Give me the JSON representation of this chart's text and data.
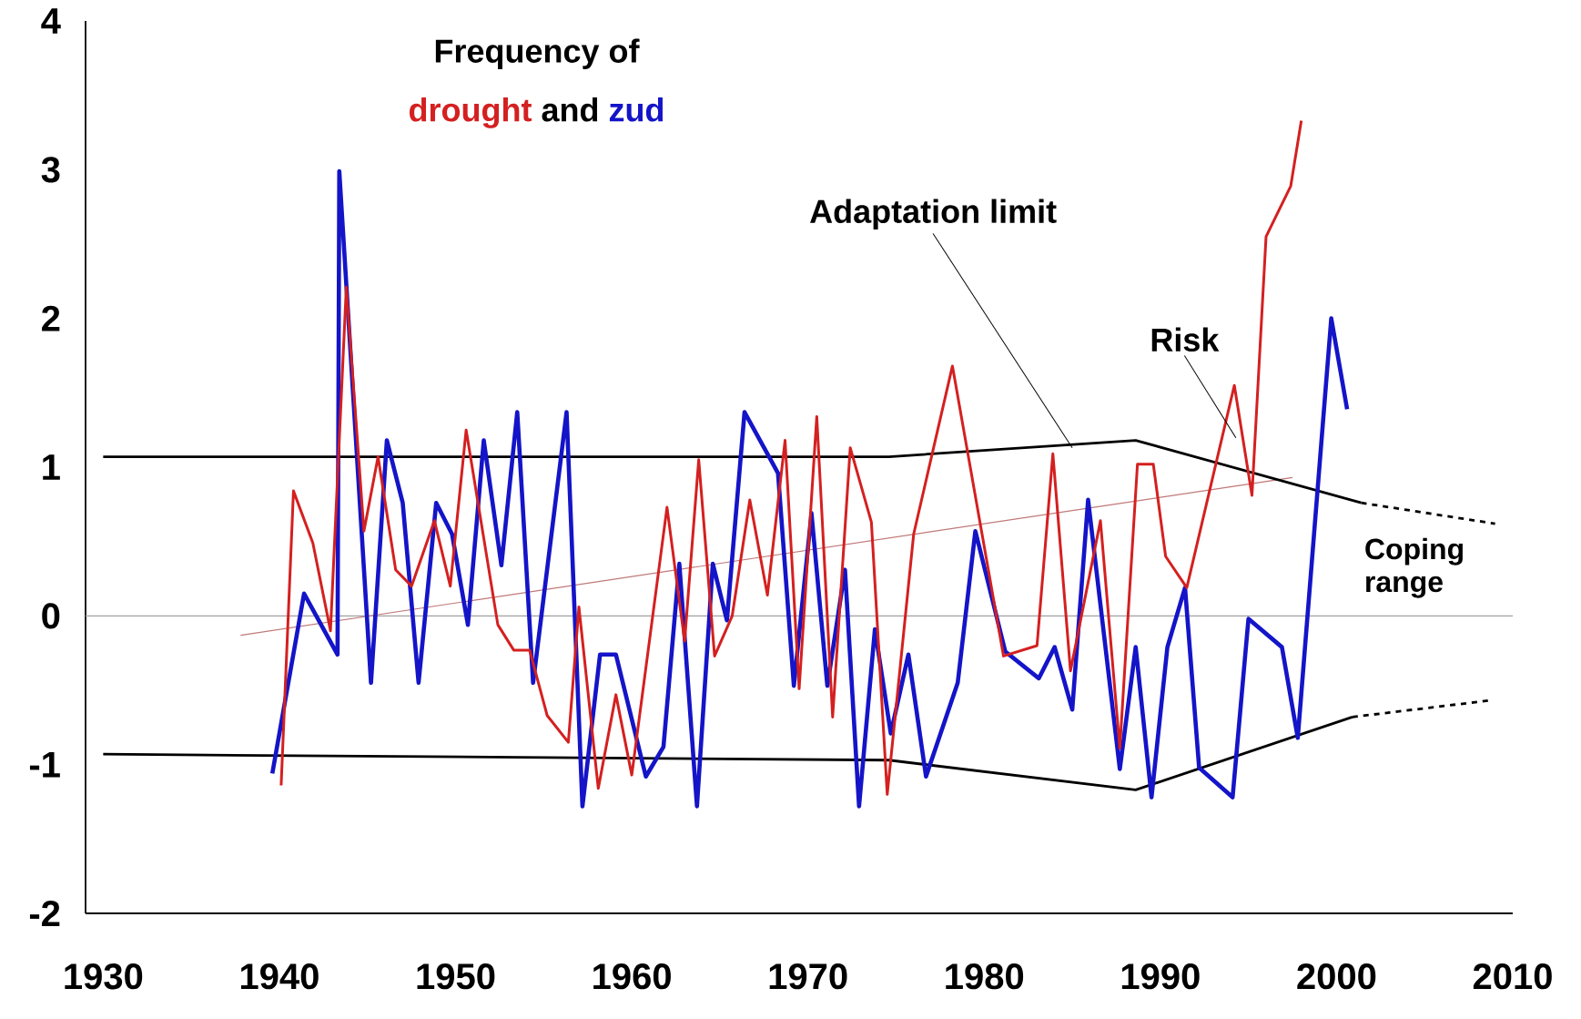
{
  "chart_data": {
    "type": "line",
    "title": "Frequency of",
    "xlim": [
      1929,
      2010
    ],
    "ylim": [
      -2,
      4
    ],
    "xticks": [
      1930,
      1940,
      1950,
      1960,
      1970,
      1980,
      1990,
      2000,
      2010
    ],
    "yticks": [
      -2,
      -1,
      0,
      1,
      2,
      3,
      4
    ],
    "grid": false,
    "marker": "none",
    "ref_lines": [
      {
        "axis": "y",
        "value": 0,
        "color": "#a0a0a0"
      }
    ],
    "annotations": [
      "and",
      {
        "text": "Adaptation limit",
        "x": 1985.0,
        "y": 1.13
      },
      "Risk",
      "Coping range"
    ],
    "series": [
      {
        "name": "drought",
        "color": "#d42020",
        "x": [
          1940.1,
          1940.8,
          1941.9,
          1942.9,
          1943.8,
          1944.8,
          1945.6,
          1946.6,
          1947.5,
          1948.8,
          1949.7,
          1950.6,
          1952.4,
          1953.3,
          1954.2,
          1955.2,
          1956.4,
          1957.0,
          1958.1,
          1959.1,
          1960.0,
          1962.0,
          1963.0,
          1963.8,
          1964.7,
          1965.7,
          1966.7,
          1967.7,
          1968.7,
          1969.5,
          1970.5,
          1971.4,
          1972.4,
          1973.6,
          1974.5,
          1976.0,
          1978.2,
          1981.1,
          1983.0,
          1983.9,
          1984.9,
          1986.6,
          1987.7,
          1988.7,
          1989.6,
          1990.3,
          1991.5,
          1994.2,
          1995.2,
          1996.0,
          1997.4,
          1998.0
        ],
        "values": [
          -1.14,
          0.84,
          0.49,
          -0.1,
          2.21,
          0.57,
          1.07,
          0.31,
          0.2,
          0.64,
          0.2,
          1.25,
          -0.06,
          -0.23,
          -0.23,
          -0.67,
          -0.85,
          0.06,
          -1.16,
          -0.53,
          -1.07,
          0.73,
          -0.17,
          1.05,
          -0.27,
          0.0,
          0.78,
          0.14,
          1.18,
          -0.49,
          1.34,
          -0.68,
          1.13,
          0.63,
          -1.2,
          0.55,
          1.68,
          -0.27,
          -0.2,
          1.09,
          -0.37,
          0.64,
          -0.89,
          1.02,
          1.02,
          0.4,
          0.19,
          1.55,
          0.81,
          2.55,
          2.89,
          3.33
        ]
      },
      {
        "name": "zud",
        "color": "#1414c8",
        "x": [
          1939.6,
          1941.4,
          1943.3,
          1943.4,
          1945.2,
          1946.1,
          1947.0,
          1947.9,
          1948.9,
          1949.8,
          1950.7,
          1951.6,
          1952.6,
          1953.5,
          1954.4,
          1956.3,
          1957.2,
          1958.2,
          1959.1,
          1960.8,
          1961.8,
          1962.7,
          1963.7,
          1964.6,
          1965.4,
          1966.4,
          1968.3,
          1969.2,
          1970.2,
          1971.1,
          1972.1,
          1972.9,
          1973.8,
          1974.7,
          1975.7,
          1976.7,
          1978.5,
          1979.5,
          1981.2,
          1983.1,
          1984.0,
          1985.0,
          1985.9,
          1987.7,
          1988.6,
          1989.5,
          1990.4,
          1991.4,
          1992.2,
          1994.1,
          1995.0,
          1996.9,
          1997.8,
          1999.7,
          2000.6
        ],
        "values": [
          -1.06,
          0.15,
          -0.26,
          2.99,
          -0.45,
          1.18,
          0.76,
          -0.45,
          0.76,
          0.55,
          -0.06,
          1.18,
          0.34,
          1.37,
          -0.45,
          1.37,
          -1.28,
          -0.26,
          -0.26,
          -1.08,
          -0.88,
          0.35,
          -1.28,
          0.35,
          -0.03,
          1.37,
          0.96,
          -0.47,
          0.69,
          -0.47,
          0.31,
          -1.28,
          -0.09,
          -0.79,
          -0.26,
          -1.08,
          -0.45,
          0.57,
          -0.24,
          -0.42,
          -0.21,
          -0.63,
          0.78,
          -1.03,
          -0.21,
          -1.22,
          -0.21,
          0.19,
          -1.02,
          -1.22,
          -0.02,
          -0.21,
          -0.82,
          2.0,
          1.39
        ]
      },
      {
        "color": "#000000",
        "x": [
          1930,
          1974.6,
          1988.6,
          2001.4
        ],
        "values": [
          1.07,
          1.07,
          1.18,
          0.76
        ]
      },
      {
        "color": "#000000",
        "line_style": "dashed",
        "x": [
          2001.4,
          2009
        ],
        "values": [
          0.76,
          0.62
        ]
      },
      {
        "color": "#000000",
        "x": [
          1930,
          1974.6,
          1988.6,
          2000.9
        ],
        "values": [
          -0.93,
          -0.97,
          -1.17,
          -0.68
        ]
      },
      {
        "color": "#000000",
        "line_style": "dashed",
        "x": [
          2000.9,
          2008.6
        ],
        "values": [
          -0.68,
          -0.57
        ]
      },
      {
        "color": "#c07878",
        "x": [
          1937.8,
          1997.5
        ],
        "values": [
          -0.13,
          0.93
        ]
      }
    ]
  }
}
